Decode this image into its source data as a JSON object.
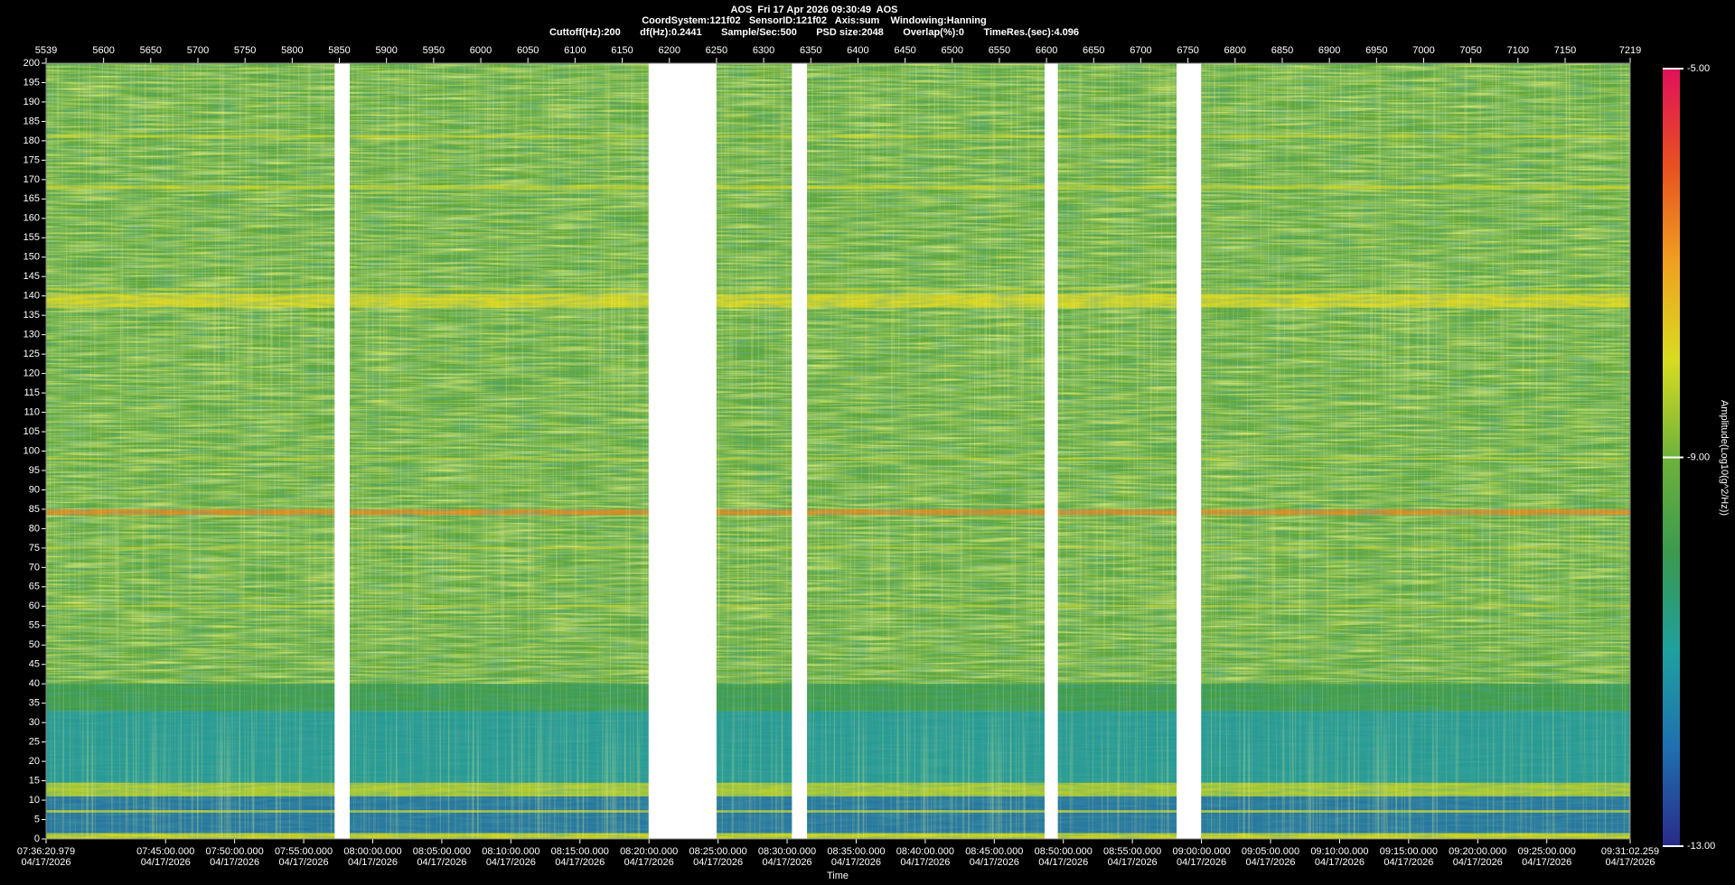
{
  "chart_data": {
    "type": "spectrogram",
    "title": "AOS  Fri 17 Apr 2026 09:30:49  AOS",
    "subtitle": [
      "CoordSystem:121f02   SensorID:121f02   Axis:sum    Windowing:Hanning",
      "Cuttoff(Hz):200       df(Hz):0.2441       Sample/Sec:500       PSD size:2048       Overlap(%):0       TimeRes.(sec):4.096"
    ],
    "x_label": "Time",
    "colorbar_label": "Amplitude(Log10(g^2/Hz))",
    "xlim": [
      5539,
      7219
    ],
    "xticks": [
      5539,
      5600,
      5650,
      5700,
      5750,
      5800,
      5850,
      5900,
      5950,
      6000,
      6050,
      6100,
      6150,
      6200,
      6250,
      6300,
      6350,
      6400,
      6450,
      6500,
      6550,
      6600,
      6650,
      6700,
      6750,
      6800,
      6850,
      6900,
      6950,
      7000,
      7050,
      7100,
      7150,
      7219
    ],
    "ylim": [
      0,
      200
    ],
    "yticks": [
      0,
      5,
      10,
      15,
      20,
      25,
      30,
      35,
      40,
      45,
      50,
      55,
      60,
      65,
      70,
      75,
      80,
      85,
      90,
      95,
      100,
      105,
      110,
      115,
      120,
      125,
      130,
      135,
      140,
      145,
      150,
      155,
      160,
      165,
      170,
      175,
      180,
      185,
      190,
      195,
      200
    ],
    "x2lim": [
      0,
      6881.28
    ],
    "x2_date": "04/17/2026",
    "x2ticks": [
      {
        "value": 0,
        "label": "07:36:20.979"
      },
      {
        "value": 519.021,
        "label": "07:45:00.000"
      },
      {
        "value": 819.021,
        "label": "07:50:00.000"
      },
      {
        "value": 1119.021,
        "label": "07:55:00.000"
      },
      {
        "value": 1419.021,
        "label": "08:00:00.000"
      },
      {
        "value": 1719.021,
        "label": "08:05:00.000"
      },
      {
        "value": 2019.021,
        "label": "08:10:00.000"
      },
      {
        "value": 2319.021,
        "label": "08:15:00.000"
      },
      {
        "value": 2619.021,
        "label": "08:20:00.000"
      },
      {
        "value": 2919.021,
        "label": "08:25:00.000"
      },
      {
        "value": 3219.021,
        "label": "08:30:00.000"
      },
      {
        "value": 3519.021,
        "label": "08:35:00.000"
      },
      {
        "value": 3819.021,
        "label": "08:40:00.000"
      },
      {
        "value": 4119.021,
        "label": "08:45:00.000"
      },
      {
        "value": 4419.021,
        "label": "08:50:00.000"
      },
      {
        "value": 4719.021,
        "label": "08:55:00.000"
      },
      {
        "value": 5019.021,
        "label": "09:00:00.000"
      },
      {
        "value": 5319.021,
        "label": "09:05:00.000"
      },
      {
        "value": 5619.021,
        "label": "09:10:00.000"
      },
      {
        "value": 5919.021,
        "label": "09:15:00.000"
      },
      {
        "value": 6219.021,
        "label": "09:20:00.000"
      },
      {
        "value": 6519.021,
        "label": "09:25:00.000"
      },
      {
        "value": 6881.28,
        "label": "09:31:02.259"
      }
    ],
    "clim": [
      -13,
      -5
    ],
    "cticks": [
      {
        "value": -13,
        "label": "-13.00"
      },
      {
        "value": -9,
        "label": "-9.00"
      },
      {
        "value": -5,
        "label": "-5.00"
      }
    ],
    "colormap": [
      "#2a2a8a",
      "#1f6fb0",
      "#1fa0a0",
      "#3a9a50",
      "#6fb23a",
      "#d8dc20",
      "#f0a020",
      "#e85020",
      "#e0105a"
    ],
    "base_color": "#62a83c",
    "gaps": [
      {
        "start": 5845,
        "end": 5861
      },
      {
        "start": 6178,
        "end": 6250
      },
      {
        "start": 6330,
        "end": 6346
      },
      {
        "start": 6598,
        "end": 6612
      },
      {
        "start": 6738,
        "end": 6764
      }
    ],
    "bands": [
      {
        "from": 0,
        "to": 1.5,
        "color": "#d0d420"
      },
      {
        "from": 1.5,
        "to": 11,
        "color": "#2070a8"
      },
      {
        "from": 11,
        "to": 14.5,
        "color": "#b4cc30"
      },
      {
        "from": 14.5,
        "to": 33,
        "color": "#20989c"
      },
      {
        "from": 33,
        "to": 40,
        "color": "#3c9a4c"
      },
      {
        "from": 83.5,
        "to": 85,
        "color": "#e08a20"
      },
      {
        "from": 137,
        "to": 140.5,
        "color": "#e0d820"
      },
      {
        "from": 167.5,
        "to": 168.5,
        "color": "#c8d428"
      },
      {
        "from": 180.8,
        "to": 181.5,
        "color": "#c8d428"
      },
      {
        "from": 141.5,
        "to": 142,
        "color": "#c0d030"
      },
      {
        "from": 97.8,
        "to": 98.3,
        "color": "#b8cc30"
      },
      {
        "from": 74.8,
        "to": 75.3,
        "color": "#b8cc30"
      },
      {
        "from": 59.8,
        "to": 60.3,
        "color": "#b8cc30"
      },
      {
        "from": 6.8,
        "to": 7.4,
        "color": "#c8d030"
      }
    ]
  }
}
